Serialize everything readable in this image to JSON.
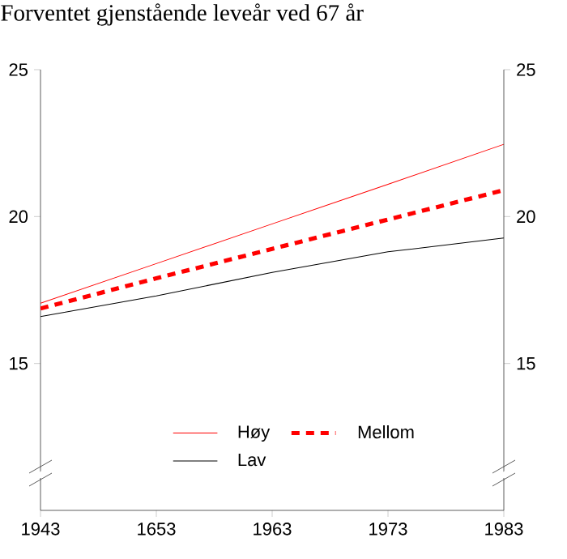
{
  "chart_data": {
    "type": "line",
    "title": "Forventet gjenstående leveår ved 67 år",
    "categories": [
      "1943",
      "1653",
      "1963",
      "1973",
      "1983"
    ],
    "series": [
      {
        "name": "Høy",
        "color": "#ff0000",
        "line_style": "solid",
        "values": [
          17.05,
          18.4,
          19.75,
          21.1,
          22.46
        ]
      },
      {
        "name": "Mellom",
        "color": "#ff0000",
        "line_style": "dashed",
        "values": [
          16.87,
          17.9,
          18.9,
          19.9,
          20.9
        ]
      },
      {
        "name": "Lav",
        "color": "#000000",
        "line_style": "solid",
        "values": [
          16.6,
          17.3,
          18.1,
          18.8,
          19.27
        ]
      }
    ],
    "ylim": [
      10,
      25
    ],
    "yticks": [
      15,
      20,
      25
    ],
    "y2lim": [
      10,
      25
    ],
    "y2ticks": [
      15,
      20,
      25
    ],
    "grid": false,
    "legend": "bottom",
    "marker": "none"
  }
}
